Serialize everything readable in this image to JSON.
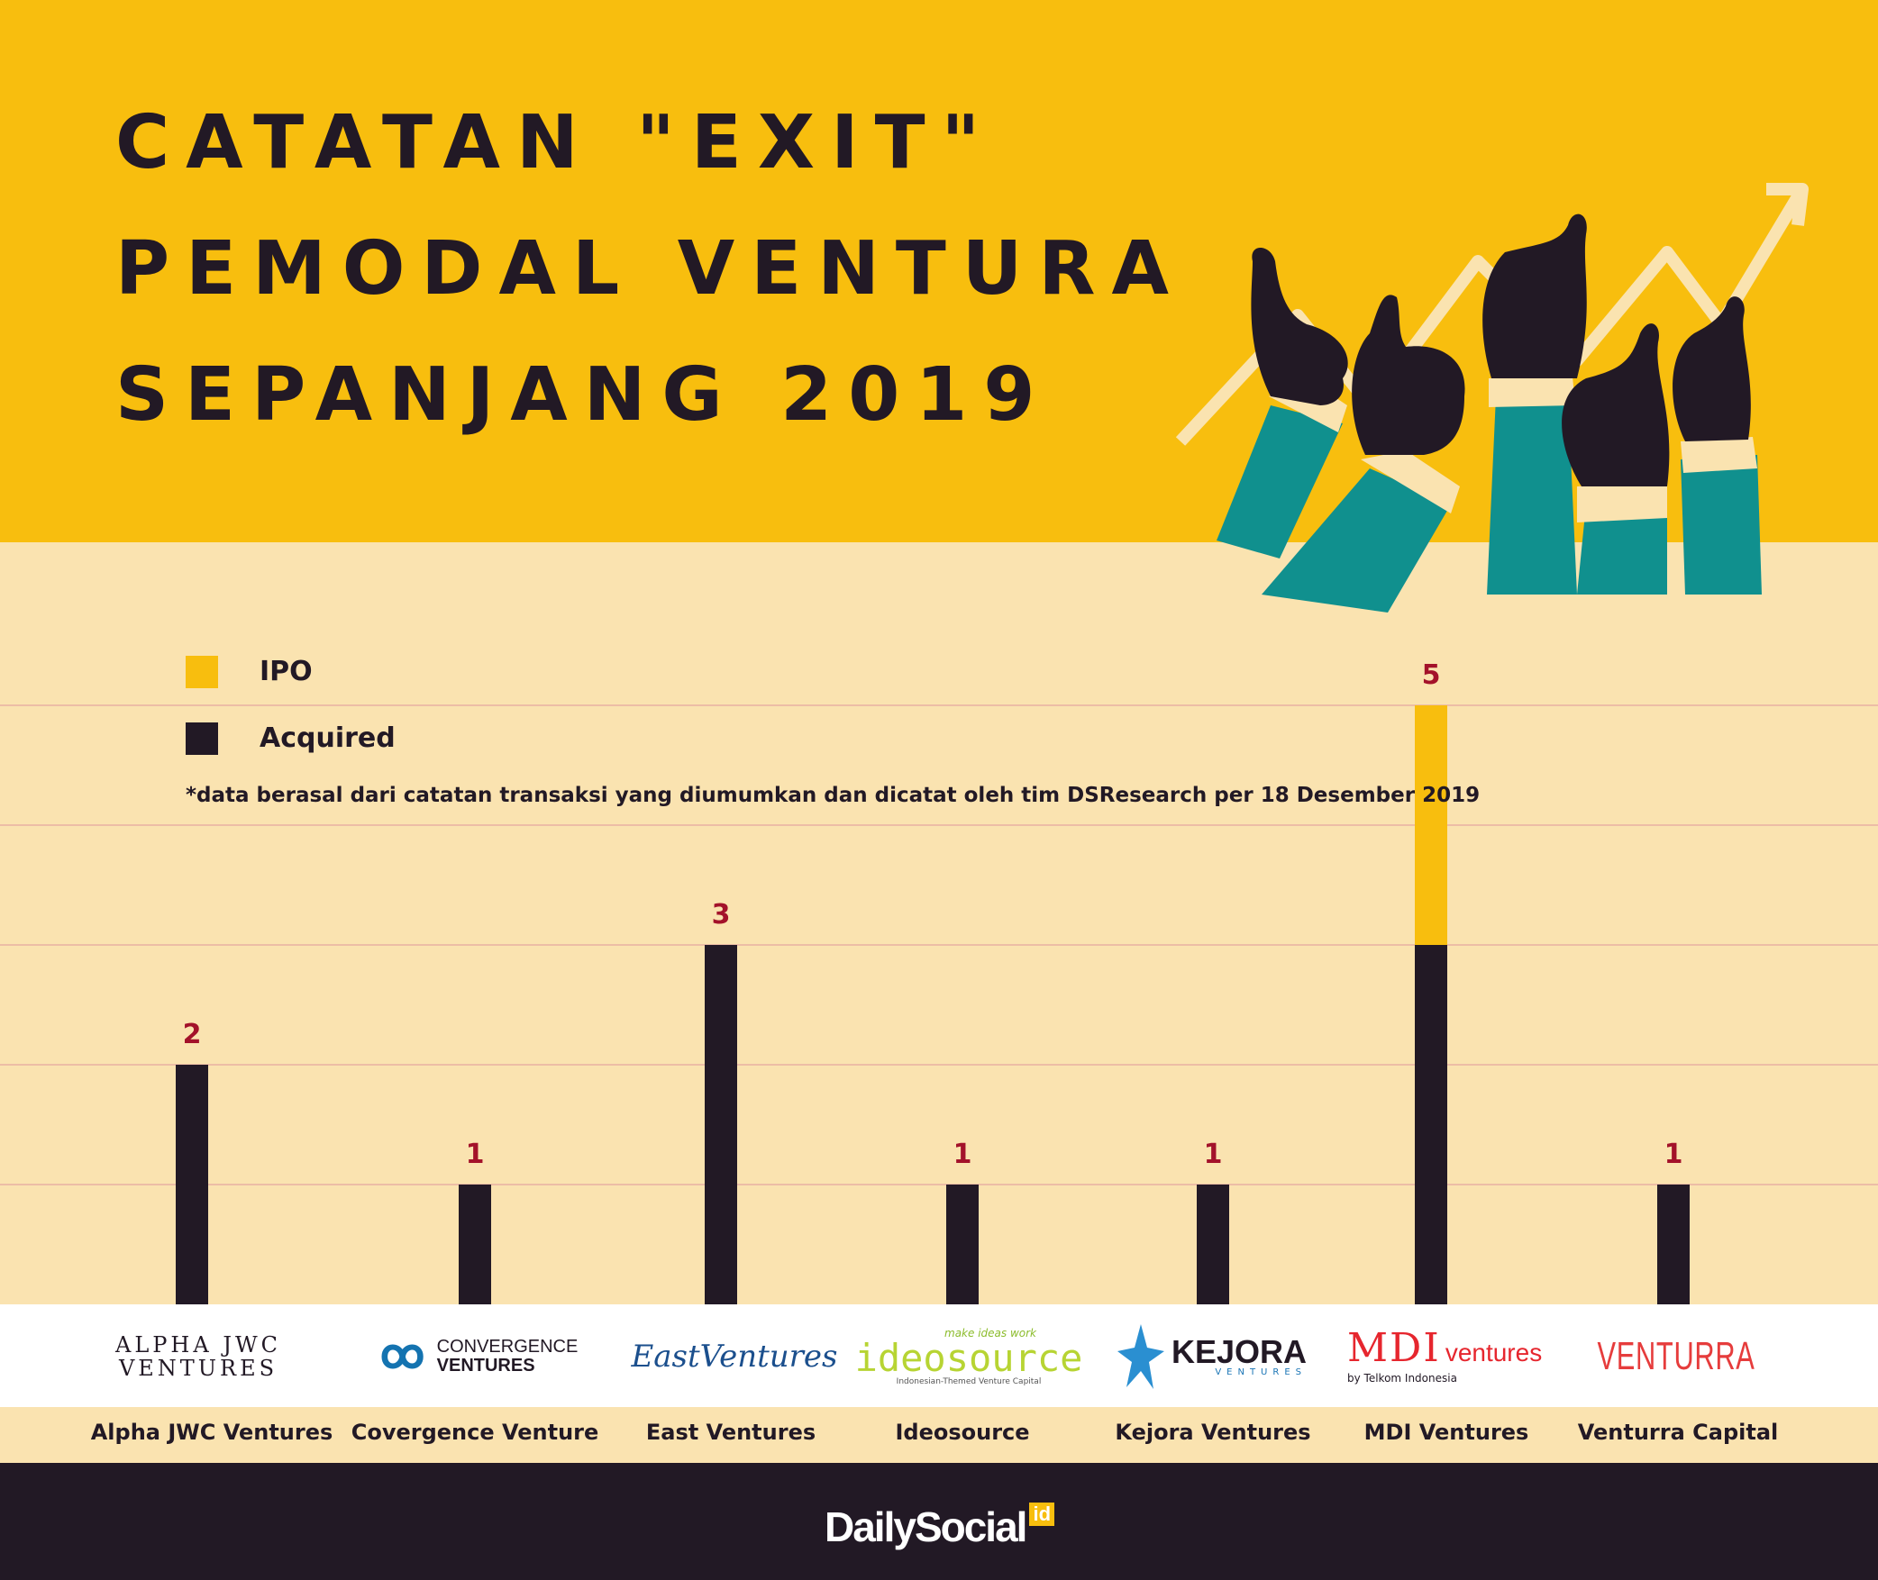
{
  "header": {
    "title_lines": [
      "CATATAN \"EXIT\"",
      "PEMODAL VENTURA",
      "SEPANJANG 2019"
    ]
  },
  "legend": {
    "ipo": "IPO",
    "acquired": "Acquired"
  },
  "note": "*data berasal dari catatan transaksi yang diumumkan dan dicatat oleh tim DSResearch per 18 Desember 2019",
  "logos": {
    "alpha": [
      "ALPHA JWC",
      "VENTURES"
    ],
    "convergence": [
      "CONVERGENCE",
      "VENTURES"
    ],
    "east": "EastVentures",
    "ideosource_tag": "make ideas work",
    "ideosource": "ideosource",
    "ideosource_sub": "Indonesian-Themed Venture Capital",
    "kejora": "KEJORA",
    "kejora_sub": "VENTURES",
    "mdi": "MDI",
    "mdi_word": "ventures",
    "mdi_sub": "by Telkom Indonesia",
    "venturra": "VENTURRA"
  },
  "footer": {
    "brand": "DailySocial",
    "brand_suffix": "id"
  },
  "colors": {
    "ipo": "#f8be0e",
    "acquired": "#221925",
    "value_label": "#a3122a",
    "gridline": "#e3a6a0"
  },
  "chart_data": {
    "type": "bar",
    "stacked": true,
    "title": "CATATAN \"EXIT\" PEMODAL VENTURA SEPANJANG 2019",
    "categories": [
      "Alpha JWC Ventures",
      "Covergence Venture",
      "East Ventures",
      "Ideosource",
      "Kejora Ventures",
      "MDI Ventures",
      "Venturra Capital"
    ],
    "series": [
      {
        "name": "Acquired",
        "values": [
          2,
          1,
          3,
          1,
          1,
          3,
          1
        ]
      },
      {
        "name": "IPO",
        "values": [
          0,
          0,
          0,
          0,
          0,
          2,
          0
        ]
      }
    ],
    "totals": [
      2,
      1,
      3,
      1,
      1,
      5,
      1
    ],
    "ylim": [
      0,
      5
    ],
    "grid": true,
    "legend_position": "top-left"
  }
}
